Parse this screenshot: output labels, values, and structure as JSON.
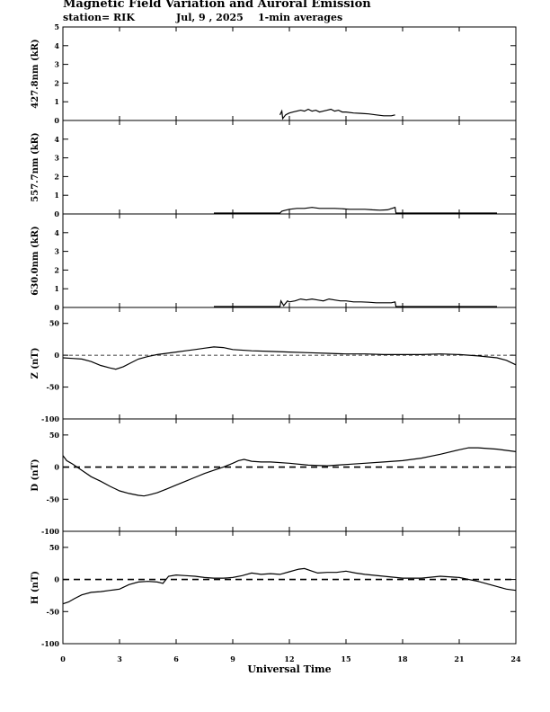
{
  "header": {
    "title": "Magnetic Field Variation and Auroral Emission",
    "station": "station= RIK",
    "date": "Jul,  9  , 2025",
    "averaging": "1-min averages"
  },
  "chart_data": [
    {
      "type": "line",
      "ylabel": "427.8nm (kR)",
      "ylim": [
        0,
        5
      ],
      "yticks": [
        0,
        1,
        2,
        3,
        4,
        5
      ],
      "zero_line": false,
      "xlim": [
        0,
        24
      ],
      "series": [
        {
          "x": [
            11.5,
            11.6,
            11.65,
            11.8,
            11.9,
            12.0,
            12.2,
            12.4,
            12.6,
            12.8,
            13.0,
            13.2,
            13.4,
            13.6,
            13.8,
            14.0,
            14.2,
            14.4,
            14.6,
            14.8,
            15.0,
            15.4,
            15.8,
            16.2,
            16.6,
            17.0,
            17.4,
            17.6
          ],
          "y": [
            0.3,
            0.5,
            0.1,
            0.3,
            0.35,
            0.4,
            0.45,
            0.5,
            0.55,
            0.5,
            0.6,
            0.5,
            0.55,
            0.45,
            0.5,
            0.55,
            0.6,
            0.5,
            0.55,
            0.45,
            0.45,
            0.4,
            0.38,
            0.35,
            0.3,
            0.25,
            0.25,
            0.3
          ]
        }
      ]
    },
    {
      "type": "line",
      "ylabel": "557.7nm (kR)",
      "ylim": [
        0,
        5
      ],
      "yticks": [
        0,
        1,
        2,
        3,
        4
      ],
      "zero_line": false,
      "xlim": [
        0,
        24
      ],
      "series": [
        {
          "x": [
            8.0,
            11.5,
            11.6,
            11.8,
            12.0,
            12.4,
            12.8,
            13.2,
            13.6,
            14.0,
            14.4,
            14.8,
            15.2,
            15.6,
            16.0,
            16.4,
            16.8,
            17.2,
            17.6,
            17.65,
            23.0
          ],
          "y": [
            0.05,
            0.05,
            0.15,
            0.2,
            0.25,
            0.3,
            0.3,
            0.35,
            0.3,
            0.3,
            0.3,
            0.28,
            0.25,
            0.25,
            0.25,
            0.22,
            0.2,
            0.22,
            0.35,
            0.05,
            0.05
          ]
        }
      ]
    },
    {
      "type": "line",
      "ylabel": "630.0nm (kR)",
      "ylim": [
        0,
        5
      ],
      "yticks": [
        0,
        1,
        2,
        3,
        4
      ],
      "zero_line": false,
      "xlim": [
        0,
        24
      ],
      "series": [
        {
          "x": [
            8.0,
            11.5,
            11.55,
            11.7,
            11.9,
            12.0,
            12.3,
            12.6,
            12.9,
            13.2,
            13.5,
            13.8,
            14.1,
            14.4,
            14.7,
            15.0,
            15.4,
            15.8,
            16.2,
            16.6,
            17.0,
            17.4,
            17.6,
            17.65,
            23.0
          ],
          "y": [
            0.05,
            0.05,
            0.35,
            0.1,
            0.35,
            0.3,
            0.35,
            0.45,
            0.4,
            0.45,
            0.4,
            0.35,
            0.45,
            0.4,
            0.35,
            0.35,
            0.3,
            0.3,
            0.28,
            0.25,
            0.25,
            0.25,
            0.3,
            0.05,
            0.05
          ]
        }
      ]
    },
    {
      "type": "line",
      "ylabel": "Z (nT)",
      "ylim": [
        -100,
        75
      ],
      "yticks": [
        -100,
        -50,
        0,
        50
      ],
      "zero_line": "dashed-thin",
      "xlim": [
        0,
        24
      ],
      "series": [
        {
          "x": [
            0,
            0.5,
            1,
            1.5,
            2,
            2.5,
            2.8,
            3.2,
            3.6,
            4,
            4.5,
            5,
            5.5,
            6,
            6.5,
            7,
            7.5,
            8,
            8.5,
            9,
            10,
            11,
            12,
            13,
            14,
            15,
            16,
            17,
            18,
            19,
            20,
            21,
            22,
            23,
            23.5,
            24
          ],
          "y": [
            -4,
            -5,
            -6,
            -10,
            -16,
            -20,
            -22,
            -18,
            -12,
            -6,
            -2,
            1,
            3,
            5,
            7,
            9,
            11,
            13,
            12,
            9,
            7,
            6,
            5,
            4,
            3,
            2,
            2,
            1,
            1,
            1,
            2,
            1,
            -1,
            -4,
            -8,
            -15
          ]
        }
      ]
    },
    {
      "type": "line",
      "ylabel": "D (nT)",
      "ylim": [
        -100,
        75
      ],
      "yticks": [
        -100,
        -50,
        0,
        50
      ],
      "zero_line": "dashed-thick",
      "xlim": [
        0,
        24
      ],
      "series": [
        {
          "x": [
            0,
            0.2,
            0.5,
            1,
            1.5,
            2,
            2.5,
            3,
            3.5,
            4,
            4.3,
            4.6,
            5,
            5.5,
            6,
            6.5,
            7,
            7.5,
            8,
            8.5,
            9,
            9.3,
            9.6,
            10,
            10.5,
            11,
            12,
            13,
            14,
            15,
            16,
            17,
            18,
            18.5,
            19,
            20,
            21,
            21.5,
            22,
            23,
            24
          ],
          "y": [
            18,
            10,
            5,
            -5,
            -15,
            -22,
            -30,
            -37,
            -41,
            -44,
            -45,
            -43,
            -40,
            -34,
            -28,
            -22,
            -16,
            -10,
            -5,
            0,
            6,
            10,
            12,
            9,
            8,
            8,
            6,
            3,
            2,
            4,
            6,
            8,
            10,
            12,
            14,
            20,
            27,
            30,
            30,
            28,
            24
          ]
        }
      ]
    },
    {
      "type": "line",
      "ylabel": "H (nT)",
      "ylim": [
        -100,
        75
      ],
      "yticks": [
        -100,
        -50,
        0,
        50
      ],
      "zero_line": "dashed-thick",
      "xlim": [
        0,
        24
      ],
      "series": [
        {
          "x": [
            0,
            0.3,
            0.6,
            1,
            1.5,
            2,
            2.5,
            3,
            3.5,
            4,
            4.5,
            5,
            5.3,
            5.6,
            6,
            6.5,
            7,
            7.5,
            8,
            8.5,
            9,
            9.5,
            10,
            10.5,
            11,
            11.5,
            12,
            12.5,
            12.8,
            13.2,
            13.5,
            14,
            14.5,
            15,
            15.5,
            16,
            17,
            18,
            19,
            20,
            21,
            22,
            22.5,
            23,
            23.5,
            24
          ],
          "y": [
            -38,
            -35,
            -30,
            -24,
            -20,
            -19,
            -17,
            -15,
            -8,
            -4,
            -3,
            -4,
            -6,
            5,
            7,
            6,
            5,
            3,
            2,
            2,
            3,
            6,
            10,
            8,
            9,
            8,
            12,
            16,
            17,
            13,
            10,
            11,
            11,
            13,
            10,
            8,
            5,
            2,
            2,
            5,
            3,
            -3,
            -7,
            -11,
            -15,
            -17
          ]
        }
      ]
    }
  ],
  "xaxis": {
    "ticks": [
      0,
      3,
      6,
      9,
      12,
      15,
      18,
      21,
      24
    ],
    "label": "Universal Time"
  }
}
